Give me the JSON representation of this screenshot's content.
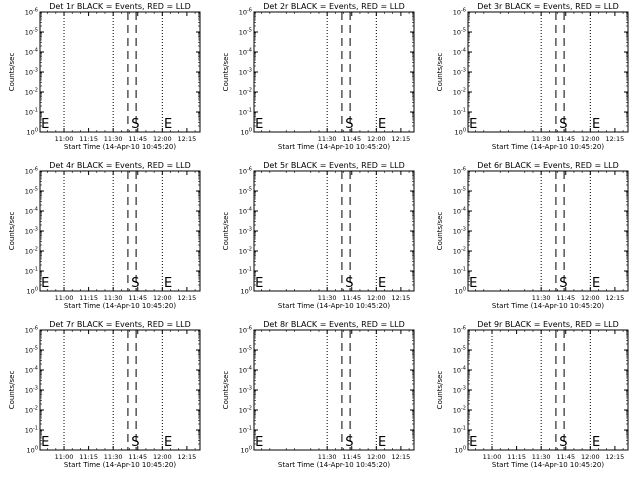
{
  "chart_data": [
    {
      "type": "line",
      "title": "Det 1r BLACK = Events, RED = LLD",
      "ylabel": "Counts/sec",
      "xlabel": "Start Time (14-Apr-10 10:45:20)",
      "x_ticks": [
        "11:00",
        "11:15",
        "11:30",
        "11:45",
        "12:00",
        "12:15"
      ],
      "y_ticks": [
        "10^0",
        "10^-1",
        "10^-2",
        "10^-3",
        "10^-4",
        "10^-5",
        "10^-6"
      ],
      "dotted_lines_at": [
        "11:00",
        "11:30",
        "12:00"
      ],
      "dashed_lines_at": [
        "11:39",
        "11:44"
      ],
      "markers": [
        {
          "text": "E",
          "x": "10:46"
        },
        {
          "text": "S",
          "x": "11:41"
        },
        {
          "text": "E",
          "x": "12:01"
        }
      ],
      "series": []
    },
    {
      "type": "line",
      "title": "Det 2r BLACK = Events, RED = LLD",
      "ylabel": "Counts/sec",
      "xlabel": "Start Time (14-Apr-10 10:45:20)",
      "x_ticks": [
        "11:30",
        "11:45",
        "12:00",
        "12:15"
      ],
      "y_ticks": [
        "10^0",
        "10^-1",
        "10^-2",
        "10^-3",
        "10^-4",
        "10^-5",
        "10^-6"
      ],
      "dotted_lines_at": [
        "11:30",
        "12:00"
      ],
      "dashed_lines_at": [
        "11:39",
        "11:44"
      ],
      "markers": [
        {
          "text": "E",
          "x": "10:46"
        },
        {
          "text": "S",
          "x": "11:41"
        },
        {
          "text": "E",
          "x": "12:01"
        }
      ],
      "series": []
    },
    {
      "type": "line",
      "title": "Det 3r BLACK = Events, RED = LLD",
      "ylabel": "Counts/sec",
      "xlabel": "Start Time (14-Apr-10 10:45:20)",
      "x_ticks": [
        "11:30",
        "11:45",
        "12:00",
        "12:15"
      ],
      "y_ticks": [
        "10^0",
        "10^-1",
        "10^-2",
        "10^-3",
        "10^-4",
        "10^-5",
        "10^-6"
      ],
      "dotted_lines_at": [
        "11:30",
        "12:00"
      ],
      "dashed_lines_at": [
        "11:39",
        "11:44"
      ],
      "markers": [
        {
          "text": "E",
          "x": "10:46"
        },
        {
          "text": "S",
          "x": "11:41"
        },
        {
          "text": "E",
          "x": "12:01"
        }
      ],
      "series": []
    },
    {
      "type": "line",
      "title": "Det 4r BLACK = Events, RED = LLD",
      "ylabel": "Counts/sec",
      "xlabel": "Start Time (14-Apr-10 10:45:20)",
      "x_ticks": [
        "11:00",
        "11:15",
        "11:30",
        "11:45",
        "12:00",
        "12:15"
      ],
      "y_ticks": [
        "10^0",
        "10^-1",
        "10^-2",
        "10^-3",
        "10^-4",
        "10^-5",
        "10^-6"
      ],
      "dotted_lines_at": [
        "11:00",
        "11:30",
        "12:00"
      ],
      "dashed_lines_at": [
        "11:39",
        "11:44"
      ],
      "markers": [
        {
          "text": "E",
          "x": "10:46"
        },
        {
          "text": "S",
          "x": "11:41"
        },
        {
          "text": "E",
          "x": "12:01"
        }
      ],
      "series": []
    },
    {
      "type": "line",
      "title": "Det 5r BLACK = Events, RED = LLD",
      "ylabel": "Counts/sec",
      "xlabel": "Start Time (14-Apr-10 10:45:20)",
      "x_ticks": [
        "11:30",
        "11:45",
        "12:00",
        "12:15"
      ],
      "y_ticks": [
        "10^0",
        "10^-1",
        "10^-2",
        "10^-3",
        "10^-4",
        "10^-5",
        "10^-6"
      ],
      "dotted_lines_at": [
        "11:30",
        "12:00"
      ],
      "dashed_lines_at": [
        "11:39",
        "11:44"
      ],
      "markers": [
        {
          "text": "E",
          "x": "10:46"
        },
        {
          "text": "S",
          "x": "11:41"
        },
        {
          "text": "E",
          "x": "12:01"
        }
      ],
      "series": []
    },
    {
      "type": "line",
      "title": "Det 6r BLACK = Events, RED = LLD",
      "ylabel": "Counts/sec",
      "xlabel": "Start Time (14-Apr-10 10:45:20)",
      "x_ticks": [
        "11:30",
        "11:45",
        "12:00",
        "12:15"
      ],
      "y_ticks": [
        "10^0",
        "10^-1",
        "10^-2",
        "10^-3",
        "10^-4",
        "10^-5",
        "10^-6"
      ],
      "dotted_lines_at": [
        "11:30",
        "12:00"
      ],
      "dashed_lines_at": [
        "11:39",
        "11:44"
      ],
      "markers": [
        {
          "text": "E",
          "x": "10:46"
        },
        {
          "text": "S",
          "x": "11:41"
        },
        {
          "text": "E",
          "x": "12:01"
        }
      ],
      "series": []
    },
    {
      "type": "line",
      "title": "Det 7r BLACK = Events, RED = LLD",
      "ylabel": "Counts/sec",
      "xlabel": "Start Time (14-Apr-10 10:45:20)",
      "x_ticks": [
        "11:00",
        "11:15",
        "11:30",
        "11:45",
        "12:00",
        "12:15"
      ],
      "y_ticks": [
        "10^0",
        "10^-1",
        "10^-2",
        "10^-3",
        "10^-4",
        "10^-5",
        "10^-6"
      ],
      "dotted_lines_at": [
        "11:00",
        "11:30",
        "12:00"
      ],
      "dashed_lines_at": [
        "11:39",
        "11:44"
      ],
      "markers": [
        {
          "text": "E",
          "x": "10:46"
        },
        {
          "text": "S",
          "x": "11:41"
        },
        {
          "text": "E",
          "x": "12:01"
        }
      ],
      "series": []
    },
    {
      "type": "line",
      "title": "Det 8r BLACK = Events, RED = LLD",
      "ylabel": "Counts/sec",
      "xlabel": "Start Time (14-Apr-10 10:45:20)",
      "x_ticks": [
        "11:30",
        "11:45",
        "12:00",
        "12:15"
      ],
      "y_ticks": [
        "10^0",
        "10^-1",
        "10^-2",
        "10^-3",
        "10^-4",
        "10^-5",
        "10^-6"
      ],
      "dotted_lines_at": [
        "11:30",
        "12:00"
      ],
      "dashed_lines_at": [
        "11:39",
        "11:44"
      ],
      "markers": [
        {
          "text": "E",
          "x": "10:46"
        },
        {
          "text": "S",
          "x": "11:41"
        },
        {
          "text": "E",
          "x": "12:01"
        }
      ],
      "series": []
    },
    {
      "type": "line",
      "title": "Det 9r BLACK = Events, RED = LLD",
      "ylabel": "Counts/sec",
      "xlabel": "Start Time (14-Apr-10 10:45:20)",
      "x_ticks": [
        "11:00",
        "11:15",
        "11:30",
        "11:45",
        "12:00",
        "12:15"
      ],
      "y_ticks": [
        "10^0",
        "10^-1",
        "10^-2",
        "10^-3",
        "10^-4",
        "10^-5",
        "10^-6"
      ],
      "dotted_lines_at": [
        "11:00",
        "11:30",
        "12:00"
      ],
      "dashed_lines_at": [
        "11:39",
        "11:44"
      ],
      "markers": [
        {
          "text": "E",
          "x": "10:46"
        },
        {
          "text": "S",
          "x": "11:41"
        },
        {
          "text": "E",
          "x": "12:01"
        }
      ],
      "series": []
    }
  ]
}
